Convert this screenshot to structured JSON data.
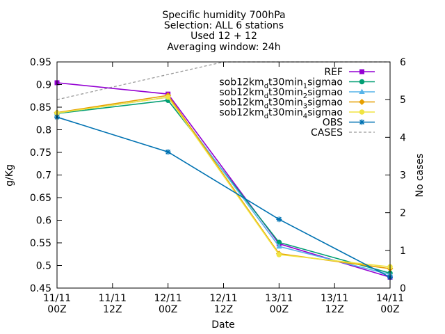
{
  "chart_data": {
    "type": "line",
    "title_lines": [
      "Specific humidity 700hPa",
      "Selection: ALL       6 stations",
      "Used 12 + 12",
      "Averaging window: 24h"
    ],
    "xlabel": "Date",
    "ylabel": "g/Kg",
    "y2label": "No cases",
    "x": [
      0,
      1,
      2,
      3,
      4,
      5,
      6
    ],
    "xtick_labels": [
      [
        "11/11",
        "00Z"
      ],
      [
        "11/11",
        "12Z"
      ],
      [
        "12/11",
        "00Z"
      ],
      [
        "12/11",
        "12Z"
      ],
      [
        "13/11",
        "00Z"
      ],
      [
        "13/11",
        "12Z"
      ],
      [
        "14/11",
        "00Z"
      ]
    ],
    "ylim": [
      0.45,
      0.95
    ],
    "yticks": [
      0.45,
      0.5,
      0.55,
      0.6,
      0.65,
      0.7,
      0.75,
      0.8,
      0.85,
      0.9,
      0.95
    ],
    "ytick_labels": [
      "0.45",
      "0.5",
      "0.55",
      "0.6",
      "0.65",
      "0.7",
      "0.75",
      "0.8",
      "0.85",
      "0.9",
      "0.95"
    ],
    "y2lim": [
      0,
      6
    ],
    "y2ticks": [
      0,
      1,
      2,
      3,
      4,
      5,
      6
    ],
    "y2tick_labels": [
      "0",
      "1",
      "2",
      "3",
      "4",
      "5",
      "6"
    ],
    "grid": false,
    "legend_position": "top-right",
    "series": [
      {
        "name": "REF",
        "color": "#9400d3",
        "marker": "filled-square",
        "axis": "left",
        "points": [
          [
            0,
            0.904
          ],
          [
            2,
            0.879
          ],
          [
            4,
            0.548
          ],
          [
            6,
            0.474
          ]
        ]
      },
      {
        "name_parts": [
          "sob12km",
          "d",
          "t30min",
          "1",
          "sigmao"
        ],
        "color": "#009e73",
        "marker": "filled-circle",
        "axis": "left",
        "points": [
          [
            0,
            0.836
          ],
          [
            2,
            0.865
          ],
          [
            4,
            0.551
          ],
          [
            6,
            0.483
          ]
        ]
      },
      {
        "name_parts": [
          "sob12km",
          "d",
          "t30min",
          "2",
          "sigmao"
        ],
        "color": "#56b4e9",
        "marker": "filled-triangle",
        "axis": "left",
        "points": [
          [
            0,
            0.837
          ],
          [
            2,
            0.872
          ],
          [
            4,
            0.542
          ],
          [
            6,
            0.48
          ]
        ]
      },
      {
        "name_parts": [
          "sob12km",
          "d",
          "t30min",
          "3",
          "sigmao"
        ],
        "color": "#e69f00",
        "marker": "filled-diamond",
        "axis": "left",
        "points": [
          [
            0,
            0.838
          ],
          [
            2,
            0.876
          ],
          [
            4,
            0.526
          ],
          [
            6,
            0.493
          ]
        ]
      },
      {
        "name_parts": [
          "sob12km",
          "d",
          "t30min",
          "4",
          "sigmao"
        ],
        "color": "#f0e442",
        "marker": "filled-circle",
        "axis": "left",
        "points": [
          [
            0,
            0.837
          ],
          [
            2,
            0.872
          ],
          [
            4,
            0.524
          ],
          [
            6,
            0.497
          ]
        ]
      },
      {
        "name": "OBS",
        "color": "#0072b2",
        "marker": "star",
        "axis": "left",
        "points": [
          [
            0,
            0.828
          ],
          [
            2,
            0.751
          ],
          [
            4,
            0.602
          ],
          [
            6,
            0.474
          ]
        ]
      },
      {
        "name": "CASES",
        "color": "#999999",
        "marker": "none",
        "dash": true,
        "axis": "right",
        "points": [
          [
            0,
            5
          ],
          [
            3,
            6
          ],
          [
            6,
            6
          ]
        ]
      }
    ]
  }
}
